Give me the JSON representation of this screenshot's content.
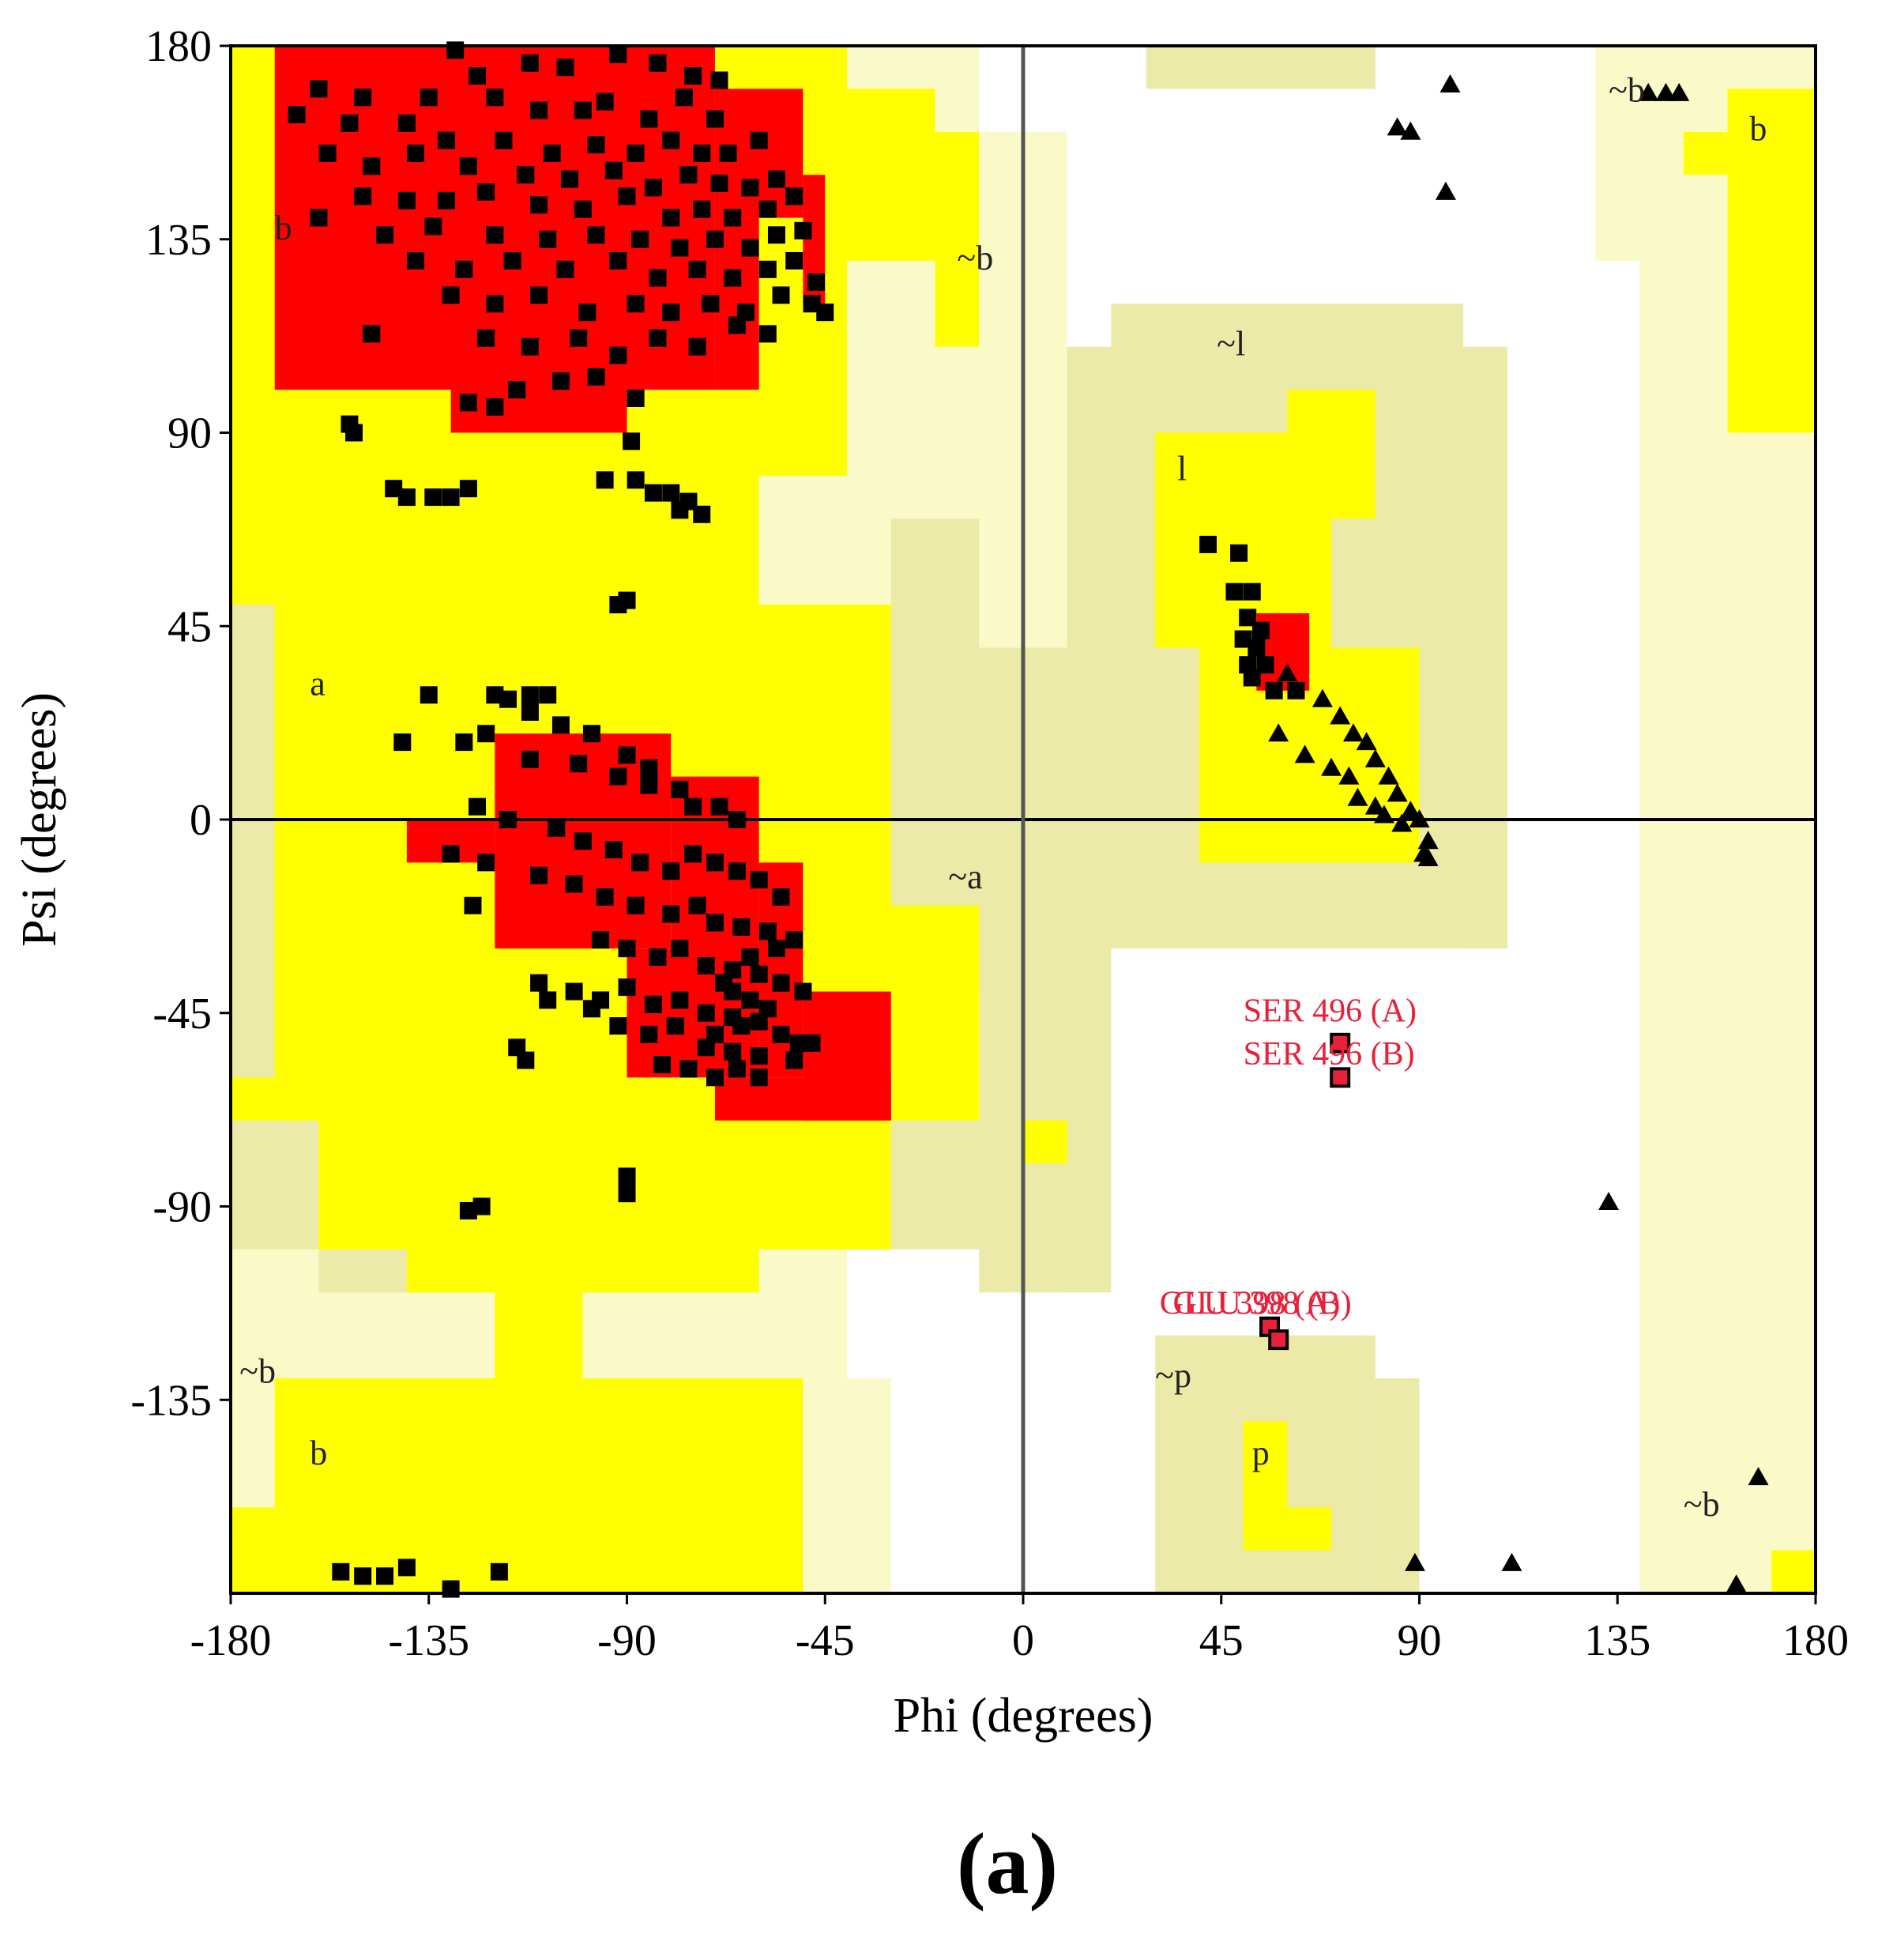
{
  "panel_label": "(a)",
  "colors": {
    "core": "#ff0000",
    "allowed": "#ffff00",
    "generous": "#ebeaa8",
    "generous_light": "#fafac8",
    "disallowed": "#ffffff",
    "residue_marker": "#000000",
    "outlier_marker": "#e8203a",
    "outlier_text": "#e8203a"
  },
  "chart_data": {
    "type": "scatter",
    "title": "",
    "xlabel": "Phi (degrees)",
    "ylabel": "Psi (degrees)",
    "xlim": [
      -180,
      180
    ],
    "ylim": [
      -180,
      180
    ],
    "xticks": [
      -180,
      -135,
      -90,
      -45,
      0,
      45,
      90,
      135,
      180
    ],
    "yticks": [
      180,
      135,
      90,
      45,
      0,
      -45,
      -90,
      -135
    ],
    "grid": false,
    "region_labels": [
      {
        "text": "b",
        "phi": -170,
        "psi": 135
      },
      {
        "text": "a",
        "phi": -162,
        "psi": 29
      },
      {
        "text": "~b",
        "phi": -15,
        "psi": 128
      },
      {
        "text": "~a",
        "phi": -17,
        "psi": -16
      },
      {
        "text": "~l",
        "phi": 44,
        "psi": 108
      },
      {
        "text": "l",
        "phi": 35,
        "psi": 79
      },
      {
        "text": "~b",
        "phi": 133,
        "psi": 167
      },
      {
        "text": "b",
        "phi": 165,
        "psi": 158
      },
      {
        "text": "~b",
        "phi": -178,
        "psi": -131
      },
      {
        "text": "b",
        "phi": -162,
        "psi": -150
      },
      {
        "text": "~p",
        "phi": 30,
        "psi": -132
      },
      {
        "text": "p",
        "phi": 52,
        "psi": -150
      },
      {
        "text": "~b",
        "phi": 150,
        "psi": -162
      }
    ],
    "outlier_labels": [
      {
        "text": "SER 496 (A)",
        "phi": 50,
        "psi": -47
      },
      {
        "text": "SER 496 (B)",
        "phi": 50,
        "psi": -57
      },
      {
        "text": "GLU 398 (A)",
        "phi": 31,
        "psi": -115
      },
      {
        "text": "GLU 398 (B)",
        "phi": 34,
        "psi": -115
      }
    ],
    "series": [
      {
        "marker": "square",
        "color": "#000000",
        "points": [
          [
            -129,
            179
          ],
          [
            -124,
            173
          ],
          [
            -112,
            176
          ],
          [
            -104,
            175
          ],
          [
            -92,
            178
          ],
          [
            -83,
            176
          ],
          [
            -75,
            173
          ],
          [
            -69,
            172
          ],
          [
            -160,
            170
          ],
          [
            -150,
            168
          ],
          [
            -135,
            168
          ],
          [
            -120,
            168
          ],
          [
            -110,
            165
          ],
          [
            -100,
            165
          ],
          [
            -95,
            167
          ],
          [
            -85,
            163
          ],
          [
            -77,
            168
          ],
          [
            -70,
            163
          ],
          [
            -165,
            164
          ],
          [
            -153,
            162
          ],
          [
            -140,
            162
          ],
          [
            -131,
            158
          ],
          [
            -118,
            158
          ],
          [
            -107,
            155
          ],
          [
            -97,
            157
          ],
          [
            -88,
            155
          ],
          [
            -80,
            158
          ],
          [
            -73,
            155
          ],
          [
            -67,
            155
          ],
          [
            -60,
            158
          ],
          [
            -158,
            155
          ],
          [
            -148,
            152
          ],
          [
            -138,
            155
          ],
          [
            -126,
            152
          ],
          [
            -113,
            150
          ],
          [
            -103,
            149
          ],
          [
            -93,
            151
          ],
          [
            -84,
            147
          ],
          [
            -76,
            150
          ],
          [
            -69,
            148
          ],
          [
            -62,
            147
          ],
          [
            -56,
            149
          ],
          [
            -150,
            145
          ],
          [
            -140,
            144
          ],
          [
            -131,
            144
          ],
          [
            -122,
            146
          ],
          [
            -110,
            143
          ],
          [
            -100,
            142
          ],
          [
            -90,
            145
          ],
          [
            -80,
            140
          ],
          [
            -73,
            142
          ],
          [
            -66,
            140
          ],
          [
            -58,
            142
          ],
          [
            -52,
            145
          ],
          [
            -160,
            140
          ],
          [
            -145,
            136
          ],
          [
            -134,
            138
          ],
          [
            -120,
            136
          ],
          [
            -108,
            135
          ],
          [
            -97,
            136
          ],
          [
            -87,
            135
          ],
          [
            -78,
            133
          ],
          [
            -70,
            135
          ],
          [
            -62,
            133
          ],
          [
            -56,
            136
          ],
          [
            -50,
            137
          ],
          [
            -138,
            130
          ],
          [
            -127,
            128
          ],
          [
            -116,
            130
          ],
          [
            -104,
            128
          ],
          [
            -92,
            130
          ],
          [
            -83,
            126
          ],
          [
            -74,
            128
          ],
          [
            -66,
            126
          ],
          [
            -58,
            128
          ],
          [
            -52,
            130
          ],
          [
            -47,
            125
          ],
          [
            -130,
            122
          ],
          [
            -120,
            120
          ],
          [
            -110,
            122
          ],
          [
            -99,
            118
          ],
          [
            -88,
            120
          ],
          [
            -80,
            118
          ],
          [
            -71,
            120
          ],
          [
            -63,
            118
          ],
          [
            -55,
            122
          ],
          [
            -48,
            120
          ],
          [
            -45,
            118
          ],
          [
            -122,
            112
          ],
          [
            -112,
            110
          ],
          [
            -101,
            112
          ],
          [
            -92,
            108
          ],
          [
            -83,
            112
          ],
          [
            -74,
            110
          ],
          [
            -65,
            115
          ],
          [
            -58,
            113
          ],
          [
            -148,
            113
          ],
          [
            -115,
            100
          ],
          [
            -105,
            102
          ],
          [
            -97,
            103
          ],
          [
            -88,
            98
          ],
          [
            -126,
            97
          ],
          [
            -120,
            96
          ],
          [
            -153,
            92
          ],
          [
            -152,
            90
          ],
          [
            -89,
            88
          ],
          [
            -143,
            77
          ],
          [
            -140,
            75
          ],
          [
            -134,
            75
          ],
          [
            -130,
            75
          ],
          [
            -126,
            77
          ],
          [
            -95,
            79
          ],
          [
            -88,
            79
          ],
          [
            -84,
            76
          ],
          [
            -80,
            76
          ],
          [
            -76,
            74
          ],
          [
            -73,
            71
          ],
          [
            -78,
            72
          ],
          [
            -92,
            50
          ],
          [
            -90,
            51
          ],
          [
            -135,
            29
          ],
          [
            -120,
            29
          ],
          [
            -117,
            28
          ],
          [
            -112,
            29
          ],
          [
            -108,
            29
          ],
          [
            -141,
            18
          ],
          [
            -127,
            18
          ],
          [
            -122,
            20
          ],
          [
            -112,
            25
          ],
          [
            -105,
            22
          ],
          [
            -98,
            20
          ],
          [
            -90,
            15
          ],
          [
            -85,
            12
          ],
          [
            -112,
            14
          ],
          [
            -101,
            13
          ],
          [
            -92,
            10
          ],
          [
            -85,
            8
          ],
          [
            -78,
            7
          ],
          [
            -75,
            3
          ],
          [
            -69,
            3
          ],
          [
            -65,
            0
          ],
          [
            -124,
            3
          ],
          [
            -117,
            0
          ],
          [
            -106,
            -2
          ],
          [
            -100,
            -5
          ],
          [
            -93,
            -7
          ],
          [
            -87,
            -10
          ],
          [
            -80,
            -12
          ],
          [
            -75,
            -8
          ],
          [
            -70,
            -10
          ],
          [
            -65,
            -12
          ],
          [
            -60,
            -14
          ],
          [
            -55,
            -18
          ],
          [
            -130,
            -8
          ],
          [
            -122,
            -10
          ],
          [
            -110,
            -13
          ],
          [
            -102,
            -15
          ],
          [
            -95,
            -18
          ],
          [
            -88,
            -20
          ],
          [
            -80,
            -22
          ],
          [
            -74,
            -20
          ],
          [
            -70,
            -24
          ],
          [
            -64,
            -25
          ],
          [
            -58,
            -26
          ],
          [
            -52,
            -28
          ],
          [
            -125,
            -20
          ],
          [
            -96,
            -28
          ],
          [
            -90,
            -30
          ],
          [
            -83,
            -32
          ],
          [
            -78,
            -30
          ],
          [
            -72,
            -34
          ],
          [
            -66,
            -35
          ],
          [
            -60,
            -36
          ],
          [
            -55,
            -38
          ],
          [
            -50,
            -40
          ],
          [
            -110,
            -38
          ],
          [
            -102,
            -40
          ],
          [
            -96,
            -42
          ],
          [
            -90,
            -39
          ],
          [
            -84,
            -43
          ],
          [
            -78,
            -42
          ],
          [
            -72,
            -45
          ],
          [
            -66,
            -46
          ],
          [
            -60,
            -47
          ],
          [
            -55,
            -50
          ],
          [
            -51,
            -52
          ],
          [
            -108,
            -42
          ],
          [
            -98,
            -44
          ],
          [
            -92,
            -48
          ],
          [
            -85,
            -50
          ],
          [
            -79,
            -48
          ],
          [
            -72,
            -53
          ],
          [
            -66,
            -54
          ],
          [
            -60,
            -55
          ],
          [
            -52,
            -56
          ],
          [
            -48,
            -52
          ],
          [
            -115,
            -53
          ],
          [
            -113,
            -56
          ],
          [
            -82,
            -57
          ],
          [
            -76,
            -58
          ],
          [
            -70,
            -60
          ],
          [
            -65,
            -58
          ],
          [
            -60,
            -60
          ],
          [
            -66,
            -40
          ],
          [
            -62,
            -42
          ],
          [
            -68,
            -38
          ],
          [
            -64,
            -48
          ],
          [
            -70,
            -50
          ],
          [
            -58,
            -44
          ],
          [
            -62,
            -32
          ],
          [
            -56,
            -30
          ],
          [
            -90,
            -83
          ],
          [
            -90,
            -87
          ],
          [
            -126,
            -91
          ],
          [
            -123,
            -90
          ],
          [
            -155,
            -175
          ],
          [
            -150,
            -176
          ],
          [
            -145,
            -176
          ],
          [
            -140,
            -174
          ],
          [
            -130,
            -179
          ],
          [
            -119,
            -175
          ],
          [
            42,
            64
          ],
          [
            49,
            62
          ],
          [
            48,
            53
          ],
          [
            52,
            53
          ],
          [
            51,
            47
          ],
          [
            54,
            44
          ],
          [
            50,
            42
          ],
          [
            53,
            40
          ],
          [
            51,
            36
          ],
          [
            55,
            36
          ],
          [
            52,
            33
          ],
          [
            57,
            30
          ],
          [
            62,
            30
          ]
        ]
      },
      {
        "marker": "triangle",
        "color": "#000000",
        "points": [
          [
            97,
            171
          ],
          [
            88,
            160
          ],
          [
            85,
            161
          ],
          [
            96,
            146
          ],
          [
            149,
            169
          ],
          [
            146,
            169
          ],
          [
            142,
            169
          ],
          [
            60,
            34
          ],
          [
            68,
            28
          ],
          [
            72,
            24
          ],
          [
            75,
            20
          ],
          [
            78,
            18
          ],
          [
            80,
            14
          ],
          [
            83,
            10
          ],
          [
            85,
            6
          ],
          [
            88,
            2
          ],
          [
            90,
            0
          ],
          [
            92,
            -5
          ],
          [
            92,
            -9
          ],
          [
            91,
            -8
          ],
          [
            58,
            20
          ],
          [
            64,
            15
          ],
          [
            70,
            12
          ],
          [
            74,
            10
          ],
          [
            76,
            5
          ],
          [
            80,
            3
          ],
          [
            82,
            1
          ],
          [
            86,
            -1
          ],
          [
            133,
            -89
          ],
          [
            167,
            -153
          ],
          [
            111,
            -173
          ],
          [
            89,
            -173
          ],
          [
            162,
            -178
          ]
        ]
      },
      {
        "marker": "square-red-outlined",
        "color": "#e8203a",
        "points": [
          [
            72,
            -52
          ],
          [
            72,
            -60
          ],
          [
            56,
            -118
          ],
          [
            58,
            -121
          ]
        ]
      }
    ]
  }
}
